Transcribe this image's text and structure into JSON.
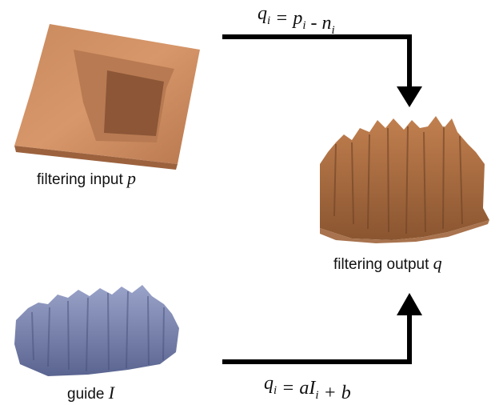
{
  "nodes": [
    {
      "label": "filtering input",
      "variable": "p"
    },
    {
      "label": "filtering output",
      "variable": "q"
    },
    {
      "label": "guide",
      "variable": "I"
    }
  ],
  "edges": [
    {
      "formula": [
        {
          "base": "q",
          "sub": "i"
        },
        {
          "base": " = p",
          "sub": "i"
        },
        {
          "base": " - n",
          "sub": "i"
        }
      ]
    },
    {
      "formula": [
        {
          "base": "q",
          "sub": "i"
        },
        {
          "base": " = aI",
          "sub": "i"
        },
        {
          "base": " + b",
          "sub": null
        }
      ]
    }
  ]
}
